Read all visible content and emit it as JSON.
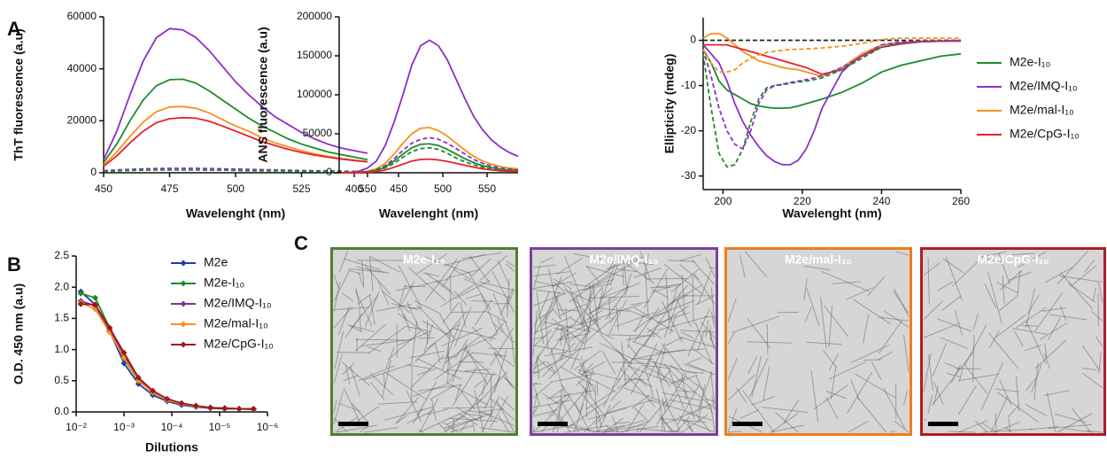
{
  "panel_labels": [
    "A",
    "B",
    "C"
  ],
  "chart_data": [
    {
      "type": "line",
      "ylabel": "ThT fluorescence (a.u)",
      "xlabel": "Wavelenght (nm)",
      "x": [
        450,
        455,
        460,
        465,
        470,
        475,
        480,
        485,
        490,
        495,
        500,
        505,
        510,
        515,
        520,
        525,
        530,
        535,
        540,
        545,
        550
      ],
      "xlim": [
        450,
        550
      ],
      "xticks": [
        450,
        475,
        500,
        525,
        550
      ],
      "ylim": [
        0,
        60000
      ],
      "yticks": [
        0,
        20000,
        40000,
        60000
      ],
      "series": [
        {
          "color": "#8b2fc9",
          "values": [
            5000,
            16000,
            30000,
            43000,
            52000,
            55500,
            55000,
            52000,
            47000,
            41000,
            35000,
            30000,
            25500,
            21500,
            18500,
            15500,
            13000,
            11000,
            9500,
            8500,
            7500
          ]
        },
        {
          "color": "#1e8a2a",
          "values": [
            4000,
            11000,
            20000,
            28000,
            33500,
            35800,
            36000,
            34500,
            31500,
            28000,
            24500,
            21000,
            18000,
            15500,
            13000,
            11000,
            9500,
            8000,
            7000,
            6000,
            5000
          ]
        },
        {
          "color": "#f7901e",
          "values": [
            3000,
            8000,
            14000,
            19500,
            23500,
            25300,
            25500,
            24800,
            23000,
            20500,
            18000,
            16000,
            13500,
            11500,
            10000,
            8500,
            7300,
            6300,
            5500,
            4800,
            4200
          ]
        },
        {
          "color": "#e8202a",
          "values": [
            2500,
            6500,
            11500,
            16000,
            19300,
            20800,
            21200,
            21000,
            19800,
            18000,
            16000,
            14000,
            12000,
            10500,
            9000,
            7800,
            6800,
            6000,
            5300,
            4700,
            4200
          ]
        },
        {
          "color": "#8b2fc9",
          "dashed": true,
          "values": [
            800,
            1100,
            1300,
            1500,
            1600,
            1700,
            1700,
            1700,
            1600,
            1500,
            1400,
            1300,
            1200,
            1100,
            1000,
            900,
            800,
            700,
            600,
            550,
            500
          ]
        },
        {
          "color": "#1e8a2a",
          "dashed": true,
          "values": [
            500,
            700,
            900,
            1000,
            1100,
            1100,
            1100,
            1100,
            1000,
            1000,
            900,
            800,
            700,
            700,
            600,
            500,
            500,
            400,
            400,
            300,
            300
          ]
        }
      ]
    },
    {
      "type": "line",
      "ylabel": "ANS fluorescence (a.u)",
      "xlabel": "Wavelenght (nm)",
      "x": [
        385,
        395,
        405,
        415,
        425,
        435,
        445,
        455,
        465,
        475,
        485,
        495,
        505,
        515,
        525,
        535,
        545,
        555,
        565,
        575,
        585
      ],
      "xlim": [
        383,
        585
      ],
      "xticks": [
        400,
        450,
        500,
        550
      ],
      "ylim": [
        0,
        200000
      ],
      "yticks": [
        0,
        50000,
        100000,
        150000,
        200000
      ],
      "series": [
        {
          "color": "#8b2fc9",
          "values": [
            0,
            500,
            2000,
            6000,
            15000,
            35000,
            65000,
            100000,
            138000,
            163000,
            170000,
            163000,
            145000,
            120000,
            95000,
            72000,
            55000,
            42000,
            33000,
            26000,
            21000
          ]
        },
        {
          "color": "#f7901e",
          "values": [
            0,
            200,
            700,
            2000,
            5000,
            12000,
            24000,
            38000,
            50000,
            57000,
            58000,
            54000,
            47000,
            38000,
            29000,
            21000,
            15000,
            11000,
            8000,
            6000,
            5000
          ]
        },
        {
          "color": "#8b2fc9",
          "dashed": true,
          "values": [
            0,
            150,
            500,
            1500,
            4000,
            9000,
            18000,
            29000,
            38000,
            43000,
            45000,
            43000,
            38000,
            31000,
            24000,
            17000,
            12000,
            8500,
            6000,
            4500,
            3500
          ]
        },
        {
          "color": "#1e8a2a",
          "values": [
            0,
            100,
            400,
            1200,
            3000,
            7500,
            15000,
            24000,
            32000,
            36500,
            37000,
            35000,
            30000,
            24000,
            18000,
            13000,
            9000,
            6500,
            4500,
            3500,
            3000
          ]
        },
        {
          "color": "#1e8a2a",
          "dashed": true,
          "values": [
            0,
            100,
            300,
            1000,
            2500,
            6000,
            12000,
            20000,
            27000,
            31000,
            32000,
            30000,
            25000,
            19000,
            14000,
            10000,
            7000,
            5000,
            3500,
            2500,
            2000
          ]
        },
        {
          "color": "#e8202a",
          "values": [
            0,
            50,
            200,
            600,
            1500,
            3500,
            7000,
            11000,
            15000,
            17000,
            17500,
            16500,
            14500,
            12000,
            9500,
            7000,
            5000,
            3500,
            2500,
            2000,
            1500
          ]
        }
      ]
    },
    {
      "type": "line",
      "ylabel": "Ellipticity (mdeg)",
      "xlabel": "Wavelenght (nm)",
      "legend": "right",
      "x": [
        195,
        197,
        199,
        201,
        203,
        205,
        207,
        209,
        211,
        213,
        215,
        217,
        219,
        221,
        223,
        225,
        230,
        235,
        240,
        245,
        250,
        255,
        260
      ],
      "xlim": [
        195,
        260
      ],
      "xticks": [
        200,
        220,
        240,
        260
      ],
      "ylim": [
        -33,
        5
      ],
      "yticks": [
        0,
        -10,
        -20,
        -30
      ],
      "series": [
        {
          "color": "#222222",
          "dashed": true,
          "values": [
            0,
            0,
            0,
            0,
            0,
            0,
            0,
            0,
            0,
            0,
            0,
            0,
            0,
            0,
            0,
            0,
            0,
            0,
            0,
            0,
            0,
            0,
            0
          ]
        },
        {
          "name": "M2e-I₁₀",
          "color": "#1e8a2a",
          "values": [
            -2,
            -5,
            -9,
            -11,
            -12,
            -13,
            -14,
            -14.5,
            -14.8,
            -15,
            -15,
            -14.9,
            -14.5,
            -14,
            -13.5,
            -13,
            -11.5,
            -9.5,
            -7,
            -5.5,
            -4.5,
            -3.5,
            -3
          ]
        },
        {
          "name": "M2e/IMQ-I₁₀",
          "color": "#8b2fc9",
          "values": [
            -1,
            -3,
            -5,
            -9,
            -14,
            -18,
            -21,
            -23.5,
            -25.5,
            -26.8,
            -27.5,
            -27.5,
            -26.5,
            -24,
            -20,
            -15,
            -7,
            -3,
            -1.5,
            -0.8,
            -0.3,
            -0.2,
            -0.2
          ]
        },
        {
          "name": "M2e/mal-I₁₀",
          "color": "#f7901e",
          "values": [
            0.5,
            1.5,
            1.5,
            0.5,
            -1,
            -2.5,
            -3.5,
            -4.5,
            -5,
            -5.5,
            -6,
            -6.3,
            -6.5,
            -7,
            -7.5,
            -8,
            -6,
            -3,
            -1,
            -0.5,
            -0.3,
            -0.2,
            -0.1
          ]
        },
        {
          "name": "M2e/CpG-I₁₀",
          "color": "#e8202a",
          "values": [
            -1,
            -1,
            -1,
            -1,
            -1.5,
            -2,
            -2.5,
            -3,
            -3.5,
            -4,
            -4.5,
            -5,
            -5.5,
            -6,
            -6.8,
            -7.5,
            -6.5,
            -3.5,
            -1.5,
            -0.7,
            -0.3,
            -0.2,
            -0.1
          ]
        },
        {
          "color": "#1e8a2a",
          "dashed": true,
          "values": [
            -3,
            -15,
            -25,
            -28,
            -27.5,
            -24,
            -18,
            -13,
            -10.5,
            -10,
            -9.8,
            -9.5,
            -9.2,
            -9,
            -8.7,
            -8.3,
            -6.5,
            -4,
            -1.5,
            -0.5,
            -0.2,
            -0.1,
            0
          ]
        },
        {
          "color": "#8b2fc9",
          "dashed": true,
          "values": [
            -2,
            -8,
            -15,
            -20,
            -23,
            -24,
            -20,
            -14,
            -11,
            -10,
            -9.7,
            -9.3,
            -9,
            -8.7,
            -8.3,
            -7.8,
            -6,
            -3.5,
            -1,
            -0.3,
            -0.1,
            0,
            0
          ]
        },
        {
          "color": "#f7901e",
          "dashed": true,
          "values": [
            -2,
            -5,
            -7,
            -7,
            -6.5,
            -5,
            -4,
            -3.2,
            -2.7,
            -2.4,
            -2.2,
            -2,
            -2,
            -1.9,
            -1.8,
            -1.7,
            -1.3,
            -0.7,
            0.2,
            0.5,
            0.5,
            0.5,
            0.5
          ]
        }
      ]
    },
    {
      "type": "line",
      "markers": "diamond",
      "ylabel": "O.D. 450 nm (a.u)",
      "xlabel": "Dilutions",
      "legend": "right",
      "xscale": "log",
      "x": [
        0.008,
        0.004,
        0.002,
        0.001,
        0.0005,
        0.00025,
        0.000125,
        6.25e-05,
        3.125e-05,
        1.5625e-05,
        7.8125e-06,
        3.90625e-06,
        1.953125e-06
      ],
      "xlim": [
        0.01,
        1e-06
      ],
      "xticks": [
        {
          "value": 0.01,
          "label": "10⁻²"
        },
        {
          "value": 0.001,
          "label": "10⁻³"
        },
        {
          "value": 0.0001,
          "label": "10⁻⁴"
        },
        {
          "value": 1e-05,
          "label": "10⁻⁵"
        },
        {
          "value": 1e-06,
          "label": "10⁻⁶"
        }
      ],
      "ylim": [
        0,
        2.5
      ],
      "yticks": [
        {
          "value": 0,
          "label": "0.0"
        },
        {
          "value": 0.5,
          "label": "0.5"
        },
        {
          "value": 1,
          "label": "1.0"
        },
        {
          "value": 1.5,
          "label": "1.5"
        },
        {
          "value": 2,
          "label": "2.0"
        },
        {
          "value": 2.5,
          "label": "2.5"
        }
      ],
      "series": [
        {
          "name": "M2e",
          "color": "#1a3fb0",
          "values": [
            1.93,
            1.72,
            1.3,
            0.78,
            0.45,
            0.27,
            0.17,
            0.11,
            0.08,
            0.06,
            0.05,
            0.05,
            0.04
          ]
        },
        {
          "name": "M2e-I₁₀",
          "color": "#1e8a2a",
          "values": [
            1.9,
            1.83,
            1.35,
            0.85,
            0.5,
            0.32,
            0.19,
            0.13,
            0.09,
            0.07,
            0.06,
            0.05,
            0.04
          ]
        },
        {
          "name": "M2e/IMQ-I₁₀",
          "color": "#7b2fa5",
          "values": [
            1.78,
            1.7,
            1.32,
            0.9,
            0.52,
            0.33,
            0.2,
            0.13,
            0.09,
            0.07,
            0.06,
            0.05,
            0.05
          ]
        },
        {
          "name": "M2e/mal-I₁₀",
          "color": "#f7901e",
          "values": [
            1.75,
            1.65,
            1.28,
            0.87,
            0.5,
            0.31,
            0.19,
            0.13,
            0.09,
            0.07,
            0.06,
            0.05,
            0.05
          ]
        },
        {
          "name": "M2e/CpG-I₁₀",
          "color": "#a01818",
          "values": [
            1.73,
            1.72,
            1.35,
            0.95,
            0.55,
            0.34,
            0.21,
            0.14,
            0.1,
            0.07,
            0.06,
            0.05,
            0.05
          ]
        }
      ]
    }
  ],
  "micrographs": [
    {
      "label": "M2e-I₁₀",
      "color": "#4f7f32",
      "density": 220
    },
    {
      "label": "M2e/IMQ-I₁₀",
      "color": "#7b3fa0",
      "density": 320
    },
    {
      "label": "M2e/mal-I₁₀",
      "color": "#ef7d1c",
      "density": 70
    },
    {
      "label": "M2e/CpG-I₁₀",
      "color": "#b01c22",
      "density": 110
    }
  ]
}
